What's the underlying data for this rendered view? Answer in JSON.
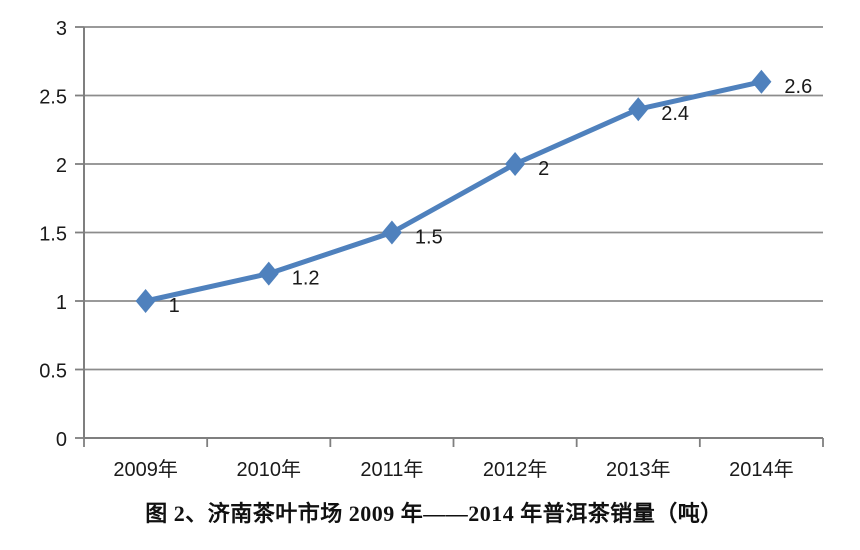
{
  "page": {
    "background": "#ffffff"
  },
  "chart_data": {
    "type": "line",
    "caption": "图 2、济南茶叶市场 2009 年——2014 年普洱茶销量（吨）",
    "categories": [
      "2009年",
      "2010年",
      "2011年",
      "2012年",
      "2013年",
      "2014年"
    ],
    "series": [
      {
        "name": "普洱茶销量（吨）",
        "values": [
          1,
          1.2,
          1.5,
          2,
          2.4,
          2.6
        ],
        "data_labels": [
          "1",
          "1.2",
          "1.5",
          "2",
          "2.4",
          "2.6"
        ]
      }
    ],
    "ylim": [
      0,
      3
    ],
    "yticks": [
      0,
      0.5,
      1,
      1.5,
      2,
      2.5,
      3
    ],
    "ytick_labels": [
      "0",
      "0.5",
      "1",
      "1.5",
      "2",
      "2.5",
      "3"
    ],
    "grid": true,
    "legend_position": "none",
    "marker": "diamond",
    "colors": {
      "line": "#4F81BD",
      "marker": "#4F81BD",
      "gridline": "#8C8C8C",
      "axis": "#7F7F7F",
      "text": "#1A1A1A"
    }
  }
}
